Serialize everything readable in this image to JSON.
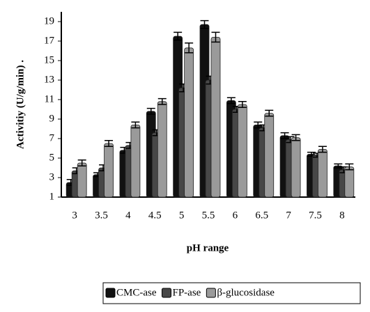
{
  "chart_data": {
    "type": "bar",
    "x_label": "pH  range",
    "y_label": "Activitiy (U/g/min) .",
    "categories": [
      "3",
      "3.5",
      "4",
      "4.5",
      "5",
      "5.5",
      "6",
      "6.5",
      "7",
      "7.5",
      "8"
    ],
    "series": [
      {
        "name": "CMC-ase",
        "color": "#111111",
        "values": [
          2.5,
          3.3,
          5.8,
          9.8,
          17.5,
          18.7,
          10.9,
          8.4,
          7.3,
          5.4,
          4.2
        ],
        "errors": [
          0.3,
          0.2,
          0.3,
          0.3,
          0.4,
          0.4,
          0.3,
          0.3,
          0.3,
          0.2,
          0.2
        ]
      },
      {
        "name": "FP-ase",
        "color": "#474747",
        "values": [
          3.7,
          4.0,
          6.3,
          7.6,
          12.2,
          13.0,
          10.0,
          8.1,
          6.9,
          5.3,
          3.8
        ],
        "errors": [
          0.3,
          0.3,
          0.3,
          0.3,
          0.4,
          0.4,
          0.3,
          0.3,
          0.3,
          0.2,
          0.3
        ]
      },
      {
        "name": "β-glucosidase",
        "color": "#9a9a9a",
        "values": [
          4.5,
          6.5,
          8.4,
          10.8,
          16.3,
          17.4,
          10.5,
          9.6,
          7.1,
          5.9,
          4.1
        ],
        "errors": [
          0.3,
          0.3,
          0.3,
          0.3,
          0.5,
          0.5,
          0.3,
          0.3,
          0.3,
          0.3,
          0.3
        ]
      }
    ],
    "ylim": [
      1,
      20
    ],
    "yticks": [
      1,
      3,
      5,
      7,
      9,
      11,
      13,
      15,
      17,
      19
    ],
    "legend": "bottom"
  }
}
